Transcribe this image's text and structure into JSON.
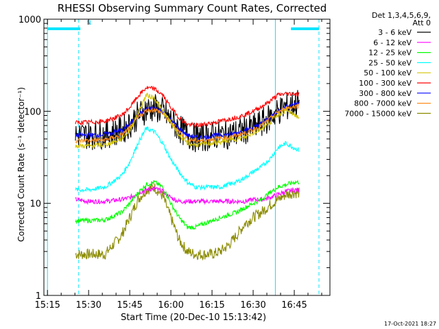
{
  "chart_data": {
    "type": "line",
    "title": "RHESSI Observing Summary Count Rates, Corrected",
    "xlabel": "Start Time (20-Dec-10 15:13:42)",
    "ylabel": "Corrected Count Rate (s⁻¹ detector⁻¹)",
    "yscale": "log",
    "ylim": [
      1,
      1000
    ],
    "xlim": [
      15.2283,
      16.9667
    ],
    "x_ticks": [
      "15:15",
      "15:30",
      "15:45",
      "16:00",
      "16:15",
      "16:30",
      "16:45"
    ],
    "y_ticks": [
      "1",
      "10",
      "100",
      "1000"
    ],
    "legend_header": [
      "Det 1,3,4,5,6,9,",
      "Att 0"
    ],
    "legend_position": "top-right",
    "footer": "17-Oct-2021 18:27",
    "annotations": [
      {
        "text": "N",
        "x": 15.48,
        "y": 900
      }
    ],
    "night_bars": [
      [
        15.25,
        15.45
      ],
      [
        16.73,
        16.9
      ]
    ],
    "vlines": [
      {
        "x": 15.25,
        "style": "solid"
      },
      {
        "x": 15.44,
        "style": "dashed"
      },
      {
        "x": 16.635,
        "style": "solid"
      },
      {
        "x": 16.9,
        "style": "dashed"
      }
    ],
    "x": [
      15.42,
      15.5,
      15.6,
      15.7,
      15.75,
      15.8,
      15.85,
      15.9,
      15.95,
      16.0,
      16.05,
      16.1,
      16.15,
      16.2,
      16.25,
      16.3,
      16.35,
      16.4,
      16.45,
      16.5,
      16.55,
      16.6,
      16.65,
      16.7,
      16.75,
      16.78
    ],
    "series": [
      {
        "name": "3 - 6 keV",
        "color": "#000000",
        "values": [
          55,
          55,
          56,
          62,
          72,
          90,
          105,
          108,
          100,
          80,
          65,
          55,
          52,
          52,
          54,
          55,
          56,
          58,
          62,
          66,
          74,
          85,
          100,
          112,
          120,
          125
        ]
      },
      {
        "name": "6 - 12 keV",
        "color": "#ff00ff",
        "values": [
          11,
          10.5,
          10.5,
          11,
          11.5,
          13,
          14,
          14.5,
          13.5,
          11.5,
          10.5,
          10.5,
          10.5,
          10.5,
          10.5,
          10.5,
          10.5,
          10.5,
          10.5,
          11,
          11,
          11.5,
          12.5,
          13.5,
          14,
          14
        ]
      },
      {
        "name": "12 - 25 keV",
        "color": "#00ff00",
        "values": [
          6.5,
          6.5,
          6.6,
          8,
          10,
          13,
          16,
          17,
          15,
          10,
          7,
          5.5,
          5.5,
          6,
          6.5,
          7,
          7.5,
          8,
          9,
          10,
          11,
          13,
          15,
          16,
          17,
          17
        ]
      },
      {
        "name": "25 - 50 keV",
        "color": "#00ffff",
        "values": [
          14,
          14,
          15,
          20,
          28,
          45,
          65,
          60,
          45,
          30,
          22,
          17,
          15,
          15,
          15,
          15,
          16,
          17,
          19,
          22,
          25,
          30,
          40,
          45,
          40,
          38
        ]
      },
      {
        "name": "50 - 100 keV",
        "color": "#d4c400",
        "values": [
          42,
          42,
          43,
          50,
          62,
          95,
          150,
          140,
          100,
          75,
          55,
          45,
          43,
          44,
          45,
          46,
          48,
          50,
          52,
          58,
          65,
          75,
          92,
          102,
          92,
          85
        ]
      },
      {
        "name": "100 - 300 keV",
        "color": "#ff0000",
        "values": [
          75,
          76,
          78,
          90,
          110,
          145,
          180,
          175,
          150,
          110,
          85,
          72,
          70,
          72,
          75,
          78,
          82,
          86,
          92,
          100,
          112,
          128,
          150,
          155,
          155,
          152
        ]
      },
      {
        "name": "300 - 800 keV",
        "color": "#0000ff",
        "values": [
          55,
          55,
          56,
          62,
          72,
          90,
          105,
          108,
          100,
          80,
          65,
          55,
          52,
          52,
          54,
          55,
          56,
          58,
          62,
          66,
          74,
          85,
          100,
          112,
          120,
          125
        ]
      },
      {
        "name": "800 - 7000 keV",
        "color": "#ff8c1a",
        "values": [
          48,
          48,
          49,
          55,
          66,
          85,
          102,
          105,
          95,
          75,
          60,
          50,
          48,
          48,
          50,
          51,
          52,
          55,
          58,
          63,
          70,
          82,
          98,
          108,
          112,
          115
        ]
      },
      {
        "name": "7000 - 15000 keV",
        "color": "#8b8b00",
        "values": [
          2.8,
          2.8,
          2.8,
          4.5,
          7,
          11,
          14,
          15,
          12,
          7,
          4,
          3,
          2.8,
          2.8,
          2.8,
          3,
          3.5,
          4.5,
          6,
          7,
          8,
          9.5,
          11,
          12.5,
          13,
          13
        ]
      }
    ]
  }
}
